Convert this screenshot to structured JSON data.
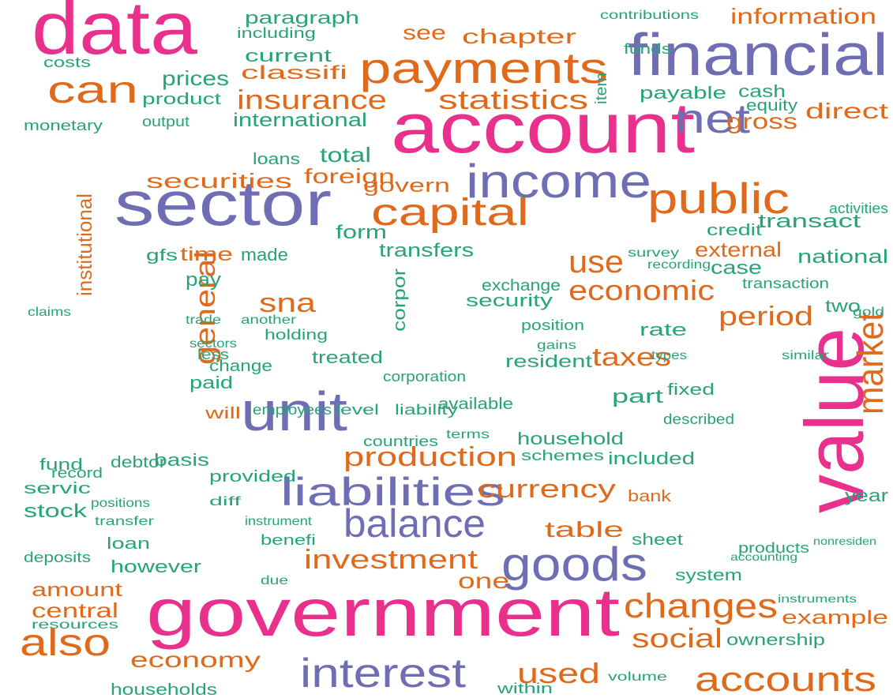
{
  "chart_data": {
    "type": "wordcloud",
    "categories": [
      "data",
      "account",
      "financial",
      "sector",
      "government",
      "value",
      "unit",
      "income",
      "payments",
      "public",
      "capital",
      "goods",
      "balance",
      "liabilities",
      "interest",
      "changes",
      "accounts",
      "also",
      "can",
      "net",
      "market",
      "insurance",
      "statistics",
      "information",
      "chapter",
      "paragraph",
      "classifi",
      "current",
      "see",
      "prices",
      "gross",
      "direct",
      "international",
      "securities",
      "foreign",
      "total",
      "govern",
      "economic",
      "use",
      "period",
      "taxes",
      "sna",
      "general",
      "institutional",
      "time",
      "form",
      "transfers",
      "made",
      "pay",
      "external",
      "national",
      "case",
      "security",
      "exchange",
      "rate",
      "two",
      "production",
      "currency",
      "investment",
      "table",
      "social",
      "used",
      "one",
      "economy",
      "amount",
      "central",
      "example",
      "treated",
      "change",
      "paid",
      "resident",
      "part",
      "fixed",
      "will",
      "basis",
      "household",
      "included",
      "bank",
      "sheet",
      "year",
      "however",
      "loan",
      "stock",
      "servic",
      "deposits",
      "households",
      "within",
      "system",
      "ownership",
      "resources",
      "volume",
      "monetary",
      "costs",
      "product",
      "output",
      "cash",
      "equity",
      "payable",
      "contributions",
      "funds",
      "item",
      "including",
      "credit",
      "transact",
      "activities",
      "loans",
      "gfs",
      "corpor",
      "liability",
      "employees",
      "level",
      "countries",
      "available",
      "terms",
      "provided",
      "debtor",
      "positions",
      "transfer",
      "fund",
      "record",
      "instrument",
      "benefi",
      "diff",
      "due",
      "described",
      "schemes",
      "transaction",
      "holding",
      "position",
      "corporation",
      "gains",
      "another",
      "trade",
      "sectors",
      "less",
      "claims",
      "products",
      "accounting",
      "instruments",
      "nonresiden",
      "survey",
      "recording",
      "types",
      "similar",
      "gold"
    ],
    "values": [
      95,
      90,
      75,
      80,
      85,
      105,
      70,
      60,
      55,
      55,
      48,
      60,
      50,
      50,
      52,
      44,
      44,
      48,
      48,
      52,
      46,
      34,
      34,
      28,
      26,
      22,
      24,
      22,
      26,
      26,
      28,
      28,
      24,
      26,
      26,
      26,
      24,
      36,
      40,
      34,
      32,
      34,
      36,
      26,
      24,
      24,
      24,
      22,
      24,
      26,
      24,
      24,
      22,
      20,
      22,
      22,
      34,
      32,
      34,
      28,
      34,
      36,
      28,
      28,
      24,
      26,
      24,
      22,
      20,
      22,
      22,
      24,
      20,
      20,
      22,
      22,
      22,
      20,
      20,
      22,
      22,
      20,
      24,
      20,
      18,
      20,
      18,
      20,
      20,
      16,
      16,
      18,
      18,
      20,
      18,
      22,
      20,
      22,
      16,
      18,
      20,
      18,
      20,
      24,
      18,
      20,
      20,
      22,
      18,
      18,
      18,
      18,
      20,
      16,
      20,
      20,
      16,
      16,
      20,
      18,
      16,
      18,
      16,
      16,
      18,
      18,
      18,
      18,
      18,
      18,
      16,
      16,
      16,
      16,
      18,
      16,
      18,
      14,
      14,
      14,
      16,
      16,
      16,
      16,
      16
    ],
    "colors": [
      "#e8308c",
      "#e8308c",
      "#6f6eb4",
      "#6f6eb4",
      "#e8308c",
      "#e8308c",
      "#6f6eb4",
      "#6f6eb4",
      "#df6a1b",
      "#df6a1b",
      "#df6a1b",
      "#6f6eb4",
      "#6f6eb4",
      "#6f6eb4",
      "#6f6eb4",
      "#df6a1b",
      "#df6a1b",
      "#df6a1b",
      "#df6a1b",
      "#6f6eb4",
      "#df6a1b",
      "#df6a1b",
      "#df6a1b",
      "#df6a1b",
      "#df6a1b",
      "#27a37b",
      "#df6a1b",
      "#27a37b",
      "#df6a1b",
      "#27a37b",
      "#df6a1b",
      "#df6a1b",
      "#27a37b",
      "#df6a1b",
      "#df6a1b",
      "#27a37b",
      "#df6a1b",
      "#df6a1b",
      "#df6a1b",
      "#df6a1b",
      "#df6a1b",
      "#df6a1b",
      "#df6a1b",
      "#df6a1b",
      "#df6a1b",
      "#27a37b",
      "#27a37b",
      "#27a37b",
      "#27a37b",
      "#df6a1b",
      "#27a37b",
      "#27a37b",
      "#27a37b",
      "#27a37b",
      "#27a37b",
      "#27a37b",
      "#df6a1b",
      "#df6a1b",
      "#df6a1b",
      "#df6a1b",
      "#df6a1b",
      "#df6a1b",
      "#df6a1b",
      "#df6a1b",
      "#df6a1b",
      "#df6a1b",
      "#df6a1b",
      "#27a37b",
      "#27a37b",
      "#27a37b",
      "#27a37b",
      "#27a37b",
      "#27a37b",
      "#df6a1b",
      "#27a37b",
      "#27a37b",
      "#27a37b",
      "#df6a1b",
      "#27a37b",
      "#27a37b",
      "#27a37b",
      "#27a37b",
      "#27a37b",
      "#27a37b",
      "#27a37b",
      "#27a37b",
      "#27a37b",
      "#27a37b",
      "#27a37b",
      "#27a37b",
      "#27a37b",
      "#27a37b",
      "#27a37b",
      "#27a37b",
      "#27a37b",
      "#27a37b",
      "#27a37b",
      "#27a37b",
      "#27a37b",
      "#27a37b",
      "#27a37b",
      "#27a37b",
      "#27a37b",
      "#27a37b",
      "#27a37b",
      "#27a37b",
      "#27a37b",
      "#27a37b",
      "#27a37b",
      "#27a37b",
      "#27a37b",
      "#27a37b",
      "#27a37b",
      "#27a37b",
      "#27a37b",
      "#27a37b",
      "#27a37b",
      "#27a37b",
      "#27a37b",
      "#27a37b",
      "#27a37b",
      "#27a37b",
      "#27a37b",
      "#27a37b",
      "#27a37b",
      "#27a37b",
      "#27a37b",
      "#27a37b",
      "#27a37b",
      "#27a37b",
      "#27a37b",
      "#27a37b",
      "#27a37b",
      "#27a37b",
      "#27a37b",
      "#27a37b",
      "#27a37b",
      "#27a37b",
      "#27a37b",
      "#27a37b",
      "#27a37b",
      "#27a37b",
      "#27a37b",
      "#27a37b",
      "#27a37b",
      "#27a37b"
    ]
  }
}
